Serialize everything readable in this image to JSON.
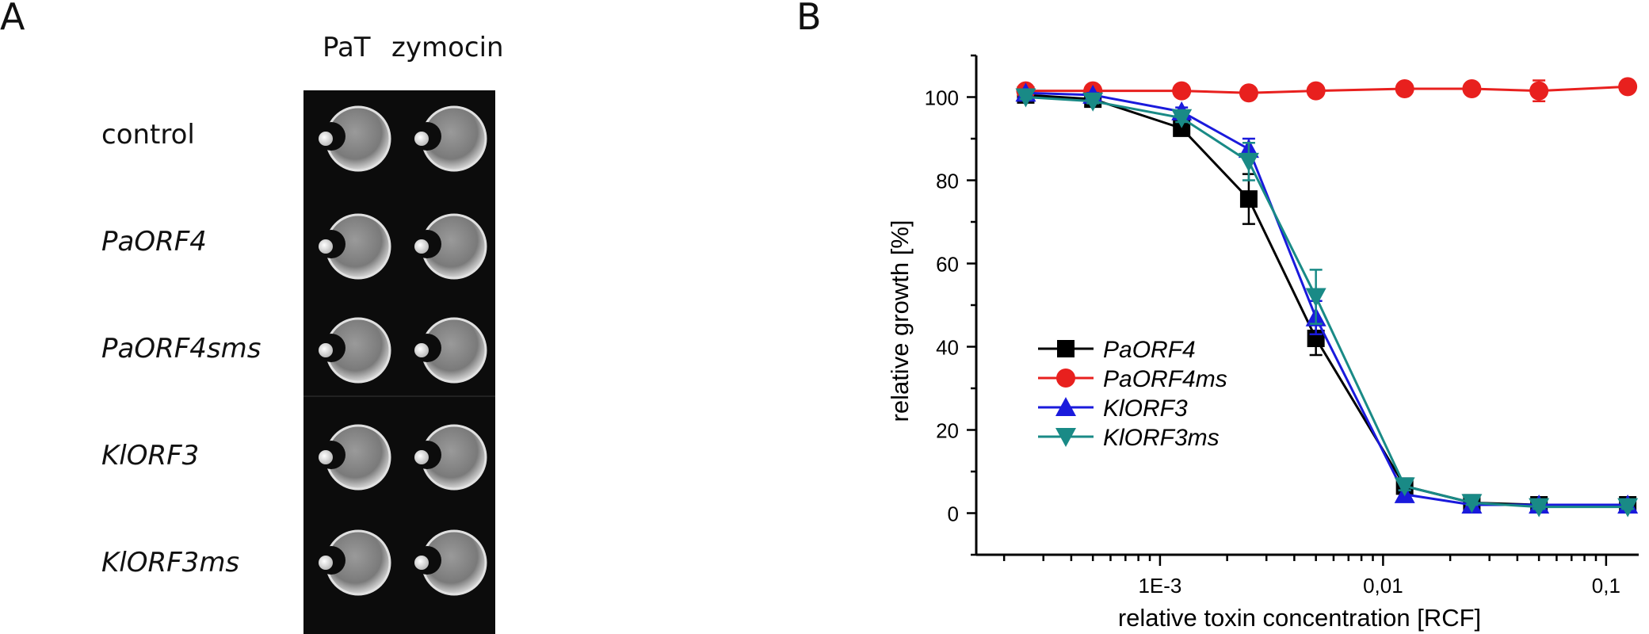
{
  "panel_a": {
    "letter": "A",
    "column_headers": [
      "PaT",
      "zymocin"
    ],
    "rows": [
      {
        "label": "control",
        "italic": false
      },
      {
        "label": "PaORF4",
        "italic": true
      },
      {
        "label": "PaORF4sms",
        "italic": true
      },
      {
        "label": "KlORF3",
        "italic": true
      },
      {
        "label": "KlORF3ms",
        "italic": true
      }
    ]
  },
  "panel_b": {
    "letter": "B"
  },
  "chart_data": {
    "type": "line",
    "xlabel": "relative toxin concentration [RCF]",
    "ylabel": "relative growth [%]",
    "x_scale": "log",
    "xlim": [
      0.00015,
      0.14
    ],
    "ylim": [
      -10,
      110
    ],
    "y_ticks": [
      0,
      20,
      40,
      60,
      80,
      100
    ],
    "x_ticks": [
      {
        "value": 0.001,
        "label": "1E-3"
      },
      {
        "value": 0.01,
        "label": "0,01"
      },
      {
        "value": 0.1,
        "label": "0,1"
      }
    ],
    "legend_position": "center-left",
    "x": [
      0.00025,
      0.0005,
      0.00125,
      0.0025,
      0.005,
      0.0125,
      0.025,
      0.05,
      0.125
    ],
    "series": [
      {
        "name": "PaORF4",
        "color": "#000000",
        "marker": "square",
        "values": [
          100.5,
          99.5,
          92.5,
          75.5,
          42,
          6.5,
          2.5,
          2,
          2
        ],
        "errors": [
          0.5,
          0.5,
          1.5,
          6,
          4,
          1,
          0.5,
          0.5,
          0.5
        ]
      },
      {
        "name": "PaORF4ms",
        "color": "#e8201e",
        "marker": "circle",
        "values": [
          101.5,
          101.5,
          101.5,
          101,
          101.5,
          102,
          102,
          101.5,
          102.5
        ],
        "errors": [
          0.5,
          0.5,
          0.5,
          0.5,
          0.5,
          0.5,
          1,
          2.5,
          0.5
        ]
      },
      {
        "name": "KlORF3",
        "color": "#1a1adc",
        "marker": "triangle-up",
        "values": [
          101,
          100.5,
          96.5,
          87.5,
          47,
          4.5,
          2,
          2,
          2
        ],
        "errors": [
          0.5,
          0.5,
          1,
          2.5,
          4,
          1,
          0.5,
          0.5,
          0.5
        ]
      },
      {
        "name": "KlORF3ms",
        "color": "#198a86",
        "marker": "triangle-down",
        "values": [
          100,
          99,
          95,
          84.5,
          52,
          6.5,
          2.5,
          1.5,
          1.5
        ],
        "errors": [
          0.5,
          0.5,
          1,
          4.5,
          6.5,
          1,
          0.5,
          0.5,
          0.5
        ]
      }
    ]
  }
}
